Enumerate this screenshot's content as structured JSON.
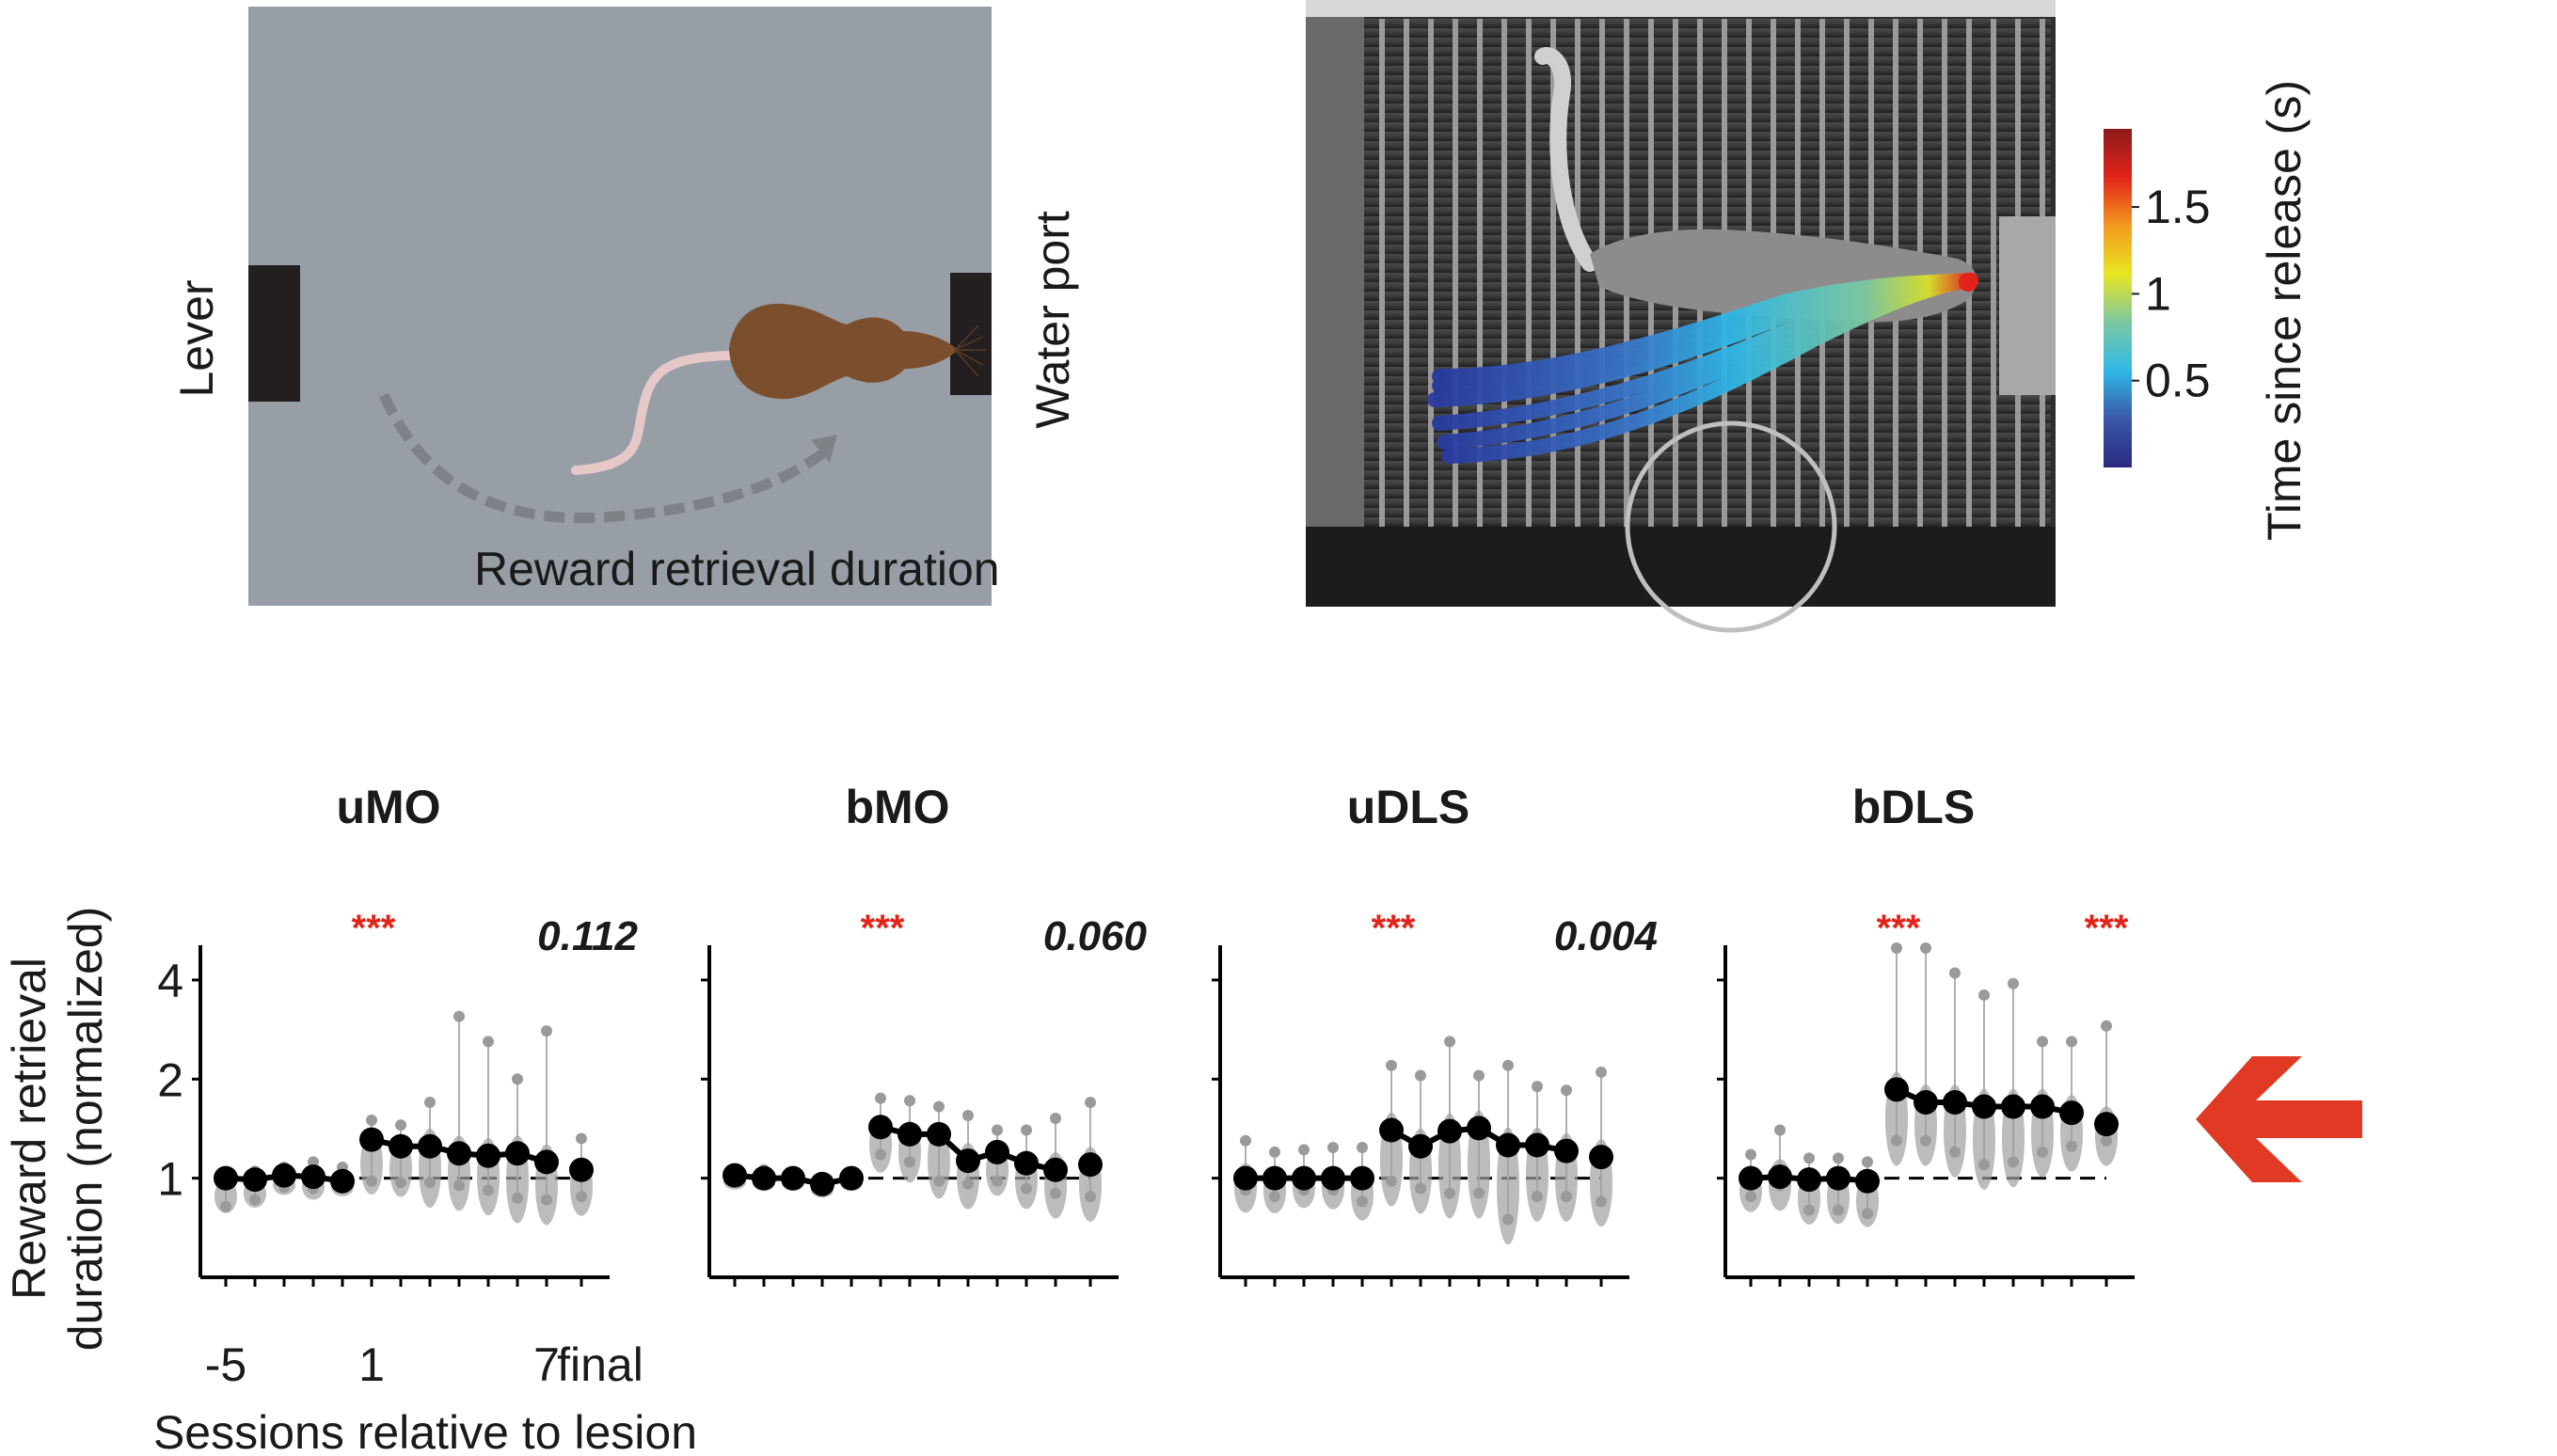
{
  "schematic": {
    "lever_label": "Lever",
    "water_port_label": "Water port",
    "path_label": "Reward retrieval duration",
    "background_color": "#979ea5",
    "rat_color": "#7b4f2e",
    "tail_color": "#e6c8c8"
  },
  "photo": {
    "description": "Grayscale photo of rat in operant cage with color-coded nose trajectories",
    "colorbar": {
      "label": "Time since release (s)",
      "ticks": [
        "0.5",
        "1",
        "1.5"
      ],
      "tick_values": [
        0.5,
        1.0,
        1.5
      ],
      "range": [
        0,
        1.95
      ],
      "colormap": [
        "#2a2a7f",
        "#3a56a8",
        "#2fb8e8",
        "#7cc8a0",
        "#e8e622",
        "#f39a1f",
        "#e2231a",
        "#8b1a1a"
      ]
    }
  },
  "highlight_arrow": {
    "color": "#e03a25",
    "direction": "left",
    "target_panel": "bDLS"
  },
  "chart_data": {
    "type": "line",
    "scale": "log2",
    "ylabel_line1": "Reward retrieval",
    "ylabel_line2": "duration (normalized)",
    "xlabel": "Sessions relative to lesion",
    "x": [
      "-5",
      "-4",
      "-3",
      "-2",
      "-1",
      "1",
      "2",
      "3",
      "4",
      "5",
      "6",
      "7",
      "final"
    ],
    "xtick_labels": [
      {
        "at": "-5",
        "text": "-5"
      },
      {
        "at": "1",
        "text": "1"
      },
      {
        "at": "7",
        "text": "7"
      },
      {
        "at": "final",
        "text": "final"
      }
    ],
    "yticks": [
      1,
      2,
      4
    ],
    "ytick_labels": [
      "1",
      "2",
      "4"
    ],
    "ylim": [
      0.5,
      5.1
    ],
    "reference_line": 1,
    "significance_color": "#e2231a",
    "panels": [
      {
        "title": "uMO",
        "early_sig": "***",
        "final_sig": "0.112",
        "final_sig_significant": false,
        "means": [
          1.0,
          0.99,
          1.02,
          1.01,
          0.98,
          1.31,
          1.25,
          1.25,
          1.19,
          1.17,
          1.19,
          1.12,
          1.06
        ],
        "spread_low": [
          0.82,
          0.86,
          0.94,
          0.93,
          0.95,
          0.98,
          0.97,
          0.97,
          0.95,
          0.92,
          0.87,
          0.86,
          0.88
        ],
        "spread_high": [
          1.04,
          1.05,
          1.08,
          1.12,
          1.08,
          1.5,
          1.45,
          1.7,
          3.1,
          2.6,
          2.0,
          2.8,
          1.32
        ]
      },
      {
        "title": "bMO",
        "early_sig": "***",
        "final_sig": "0.060",
        "final_sig_significant": false,
        "means": [
          1.02,
          1.0,
          1.0,
          0.96,
          1.0,
          1.43,
          1.36,
          1.36,
          1.13,
          1.2,
          1.11,
          1.06,
          1.1
        ],
        "spread_low": [
          0.98,
          0.98,
          0.98,
          0.93,
          0.98,
          1.18,
          1.12,
          0.98,
          0.96,
          0.98,
          0.93,
          0.9,
          0.88
        ],
        "spread_high": [
          1.04,
          1.06,
          1.04,
          1.0,
          1.03,
          1.75,
          1.72,
          1.65,
          1.55,
          1.4,
          1.4,
          1.52,
          1.7
        ]
      },
      {
        "title": "uDLS",
        "early_sig": "***",
        "final_sig": "0.004",
        "final_sig_significant": true,
        "means": [
          1.0,
          1.0,
          1.0,
          1.0,
          1.0,
          1.4,
          1.25,
          1.39,
          1.42,
          1.26,
          1.26,
          1.21,
          1.16
        ],
        "spread_low": [
          0.92,
          0.88,
          0.92,
          0.92,
          0.85,
          0.98,
          0.93,
          0.9,
          0.9,
          0.75,
          0.88,
          0.88,
          0.85
        ],
        "spread_high": [
          1.3,
          1.2,
          1.22,
          1.24,
          1.24,
          2.2,
          2.05,
          2.6,
          2.05,
          2.2,
          1.9,
          1.85,
          2.1
        ]
      },
      {
        "title": "bDLS",
        "early_sig": "***",
        "final_sig": "***",
        "final_sig_significant": true,
        "means": [
          1.0,
          1.01,
          0.99,
          1.0,
          0.98,
          1.86,
          1.7,
          1.7,
          1.65,
          1.65,
          1.65,
          1.58,
          1.46
        ],
        "spread_low": [
          0.88,
          0.95,
          0.8,
          0.8,
          0.78,
          1.3,
          1.3,
          1.2,
          1.1,
          1.12,
          1.2,
          1.25,
          1.3
        ],
        "spread_high": [
          1.18,
          1.4,
          1.15,
          1.15,
          1.12,
          5.0,
          5.0,
          4.2,
          3.6,
          3.9,
          2.6,
          2.6,
          2.9
        ]
      }
    ]
  }
}
